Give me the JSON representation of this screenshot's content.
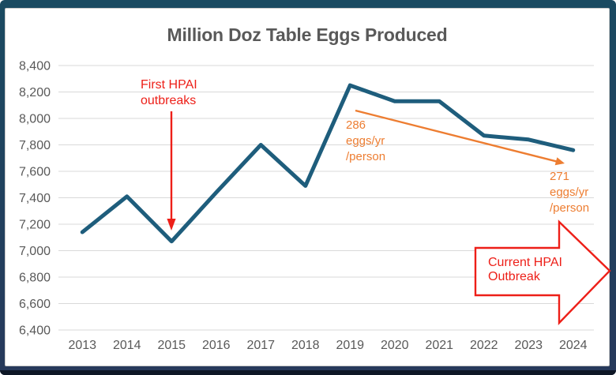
{
  "colors": {
    "frame_top": "#1A4A61",
    "frame_bottom": "#27395B",
    "frame_strip": "#0E1726",
    "panel_border": "#C9C9C9",
    "title_text": "#595959",
    "axis_text": "#595959",
    "gridline": "#D9D9D9",
    "series_line": "#1E5D7C",
    "red_accent": "#ED1F18",
    "orange_accent": "#ED7D31"
  },
  "chart_data": {
    "type": "line",
    "title": "Million Doz Table Eggs Produced",
    "categories": [
      "2013",
      "2014",
      "2015",
      "2016",
      "2017",
      "2018",
      "2019",
      "2020",
      "2021",
      "2022",
      "2023",
      "2024"
    ],
    "series": [
      {
        "name": "Million dozen table eggs produced",
        "values": [
          7140,
          7410,
          7070,
          7440,
          7800,
          7490,
          8250,
          8130,
          8130,
          7870,
          7840,
          7760
        ]
      }
    ],
    "xlabel": "",
    "ylabel": "",
    "ylim": [
      6400,
      8400
    ],
    "ytick_step": 200,
    "grid": true,
    "legend": false
  },
  "annotations": {
    "first_hpai": {
      "text": "First HPAI\noutbreaks"
    },
    "per_capita_2019": {
      "text": "286\neggs/yr\n/person"
    },
    "per_capita_2024": {
      "text": "271\neggs/yr\n/person"
    },
    "current_outbreak": {
      "text": "Current HPAI\nOutbreak"
    }
  }
}
